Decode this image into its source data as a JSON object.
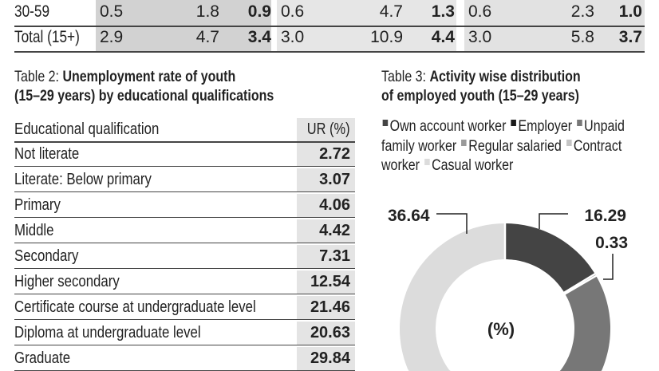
{
  "table1": {
    "rows": [
      {
        "label": "30-59",
        "groups": [
          [
            "0.5",
            "1.8",
            "0.9"
          ],
          [
            "0.6",
            "4.7",
            "1.3"
          ],
          [
            "0.6",
            "2.3",
            "1.0"
          ]
        ]
      },
      {
        "label": "Total (15+)",
        "groups": [
          [
            "2.9",
            "4.7",
            "3.4"
          ],
          [
            "3.0",
            "10.9",
            "4.4"
          ],
          [
            "3.0",
            "5.8",
            "3.7"
          ]
        ]
      }
    ]
  },
  "table2": {
    "title_prefix": "Table 2: ",
    "title_bold_1": "Unemployment rate of youth",
    "title_bold_2": "(15–29 years) by educational qualifications",
    "header": {
      "label": "Educational qualification",
      "value": "UR (%)"
    },
    "rows": [
      {
        "label": "Not literate",
        "value": "2.72"
      },
      {
        "label": "Literate: Below primary",
        "value": "3.07"
      },
      {
        "label": "Primary",
        "value": "4.06"
      },
      {
        "label": "Middle",
        "value": "4.42"
      },
      {
        "label": "Secondary",
        "value": "7.31"
      },
      {
        "label": "Higher secondary",
        "value": "12.54"
      },
      {
        "label": "Certificate course at undergraduate level",
        "value": "21.46"
      },
      {
        "label": "Diploma at undergraduate level",
        "value": "20.63"
      },
      {
        "label": "Graduate",
        "value": "29.84"
      }
    ]
  },
  "chart_data": {
    "type": "pie",
    "title_prefix": "Table 3: ",
    "title_bold_1": "Activity wise distribution",
    "title_bold_2": "of employed youth (15–29 years)",
    "center_label": "(%)",
    "legend": [
      {
        "name": "Own account worker",
        "color": "#444444"
      },
      {
        "name": "Employer",
        "color": "#1a1a1a"
      },
      {
        "name": "Unpaid family worker",
        "color": "#777777"
      },
      {
        "name": "Regular salaried",
        "color": "#9a9a9a"
      },
      {
        "name": "Contract worker",
        "color": "#c4c4c4"
      },
      {
        "name": "Casual worker",
        "color": "#dcdcdc"
      }
    ],
    "slices": [
      {
        "name": "Own account worker",
        "value": 16.29,
        "color": "#444444"
      },
      {
        "name": "Employer",
        "value": 0.33,
        "color": "#1a1a1a"
      },
      {
        "name": "Casual worker",
        "value": 36.64,
        "color": "#dcdcdc"
      }
    ],
    "other_color": "#777777"
  }
}
